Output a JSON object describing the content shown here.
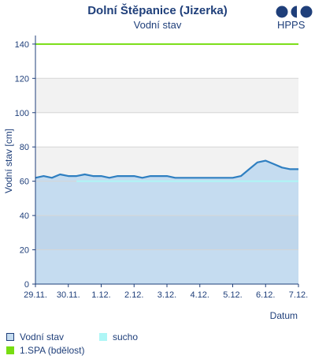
{
  "header": {
    "title": "Dolní Štěpanice (Jizerka)",
    "subtitle": "Vodní stav",
    "logo_text": "HPPS"
  },
  "colors": {
    "water_fill": "#c5dcf0",
    "water_line": "#2f7fc1",
    "band": "#f2f2f2",
    "dark_band": "#b9d1e8",
    "drought": "#aef6f6",
    "spa": "#77dd11"
  },
  "chart_data": {
    "type": "area",
    "ylabel": "Vodní stav [cm]",
    "xlabel": "Datum",
    "ylim": [
      0,
      145
    ],
    "yticks": [
      0,
      20,
      40,
      60,
      80,
      100,
      120,
      140
    ],
    "xlim": [
      "2024-11-29",
      "2024-12-07"
    ],
    "x_tick_labels": [
      "29.11.",
      "30.11.",
      "1.12.",
      "2.12.",
      "3.12.",
      "4.12.",
      "5.12.",
      "6.12.",
      "7.12."
    ],
    "grid": true,
    "series": [
      {
        "name": "Vodní stav",
        "points": [
          [
            "2024-11-29 00:00",
            62
          ],
          [
            "2024-11-29 06:00",
            63
          ],
          [
            "2024-11-29 12:00",
            62
          ],
          [
            "2024-11-29 18:00",
            64
          ],
          [
            "2024-11-30 00:00",
            63
          ],
          [
            "2024-11-30 06:00",
            63
          ],
          [
            "2024-11-30 12:00",
            64
          ],
          [
            "2024-11-30 18:00",
            63
          ],
          [
            "2024-12-01 00:00",
            63
          ],
          [
            "2024-12-01 06:00",
            62
          ],
          [
            "2024-12-01 12:00",
            63
          ],
          [
            "2024-12-01 18:00",
            63
          ],
          [
            "2024-12-02 00:00",
            63
          ],
          [
            "2024-12-02 06:00",
            62
          ],
          [
            "2024-12-02 12:00",
            63
          ],
          [
            "2024-12-02 18:00",
            63
          ],
          [
            "2024-12-03 00:00",
            63
          ],
          [
            "2024-12-03 06:00",
            62
          ],
          [
            "2024-12-03 12:00",
            62
          ],
          [
            "2024-12-03 18:00",
            62
          ],
          [
            "2024-12-04 00:00",
            62
          ],
          [
            "2024-12-04 06:00",
            62
          ],
          [
            "2024-12-04 12:00",
            62
          ],
          [
            "2024-12-04 18:00",
            62
          ],
          [
            "2024-12-05 00:00",
            62
          ],
          [
            "2024-12-05 06:00",
            63
          ],
          [
            "2024-12-05 12:00",
            67
          ],
          [
            "2024-12-05 18:00",
            71
          ],
          [
            "2024-12-06 00:00",
            72
          ],
          [
            "2024-12-06 06:00",
            70
          ],
          [
            "2024-12-06 12:00",
            68
          ],
          [
            "2024-12-06 18:00",
            67
          ],
          [
            "2024-12-07 00:00",
            67
          ]
        ]
      }
    ],
    "reference_lines": [
      {
        "name": "sucho",
        "value": 60
      },
      {
        "name": "1.SPA (bdělost)",
        "value": 140
      }
    ]
  },
  "legend": [
    {
      "key": "water",
      "label": "Vodní stav"
    },
    {
      "key": "drought",
      "label": "sucho"
    },
    {
      "key": "spa",
      "label": "1.SPA (bdělost)"
    }
  ]
}
